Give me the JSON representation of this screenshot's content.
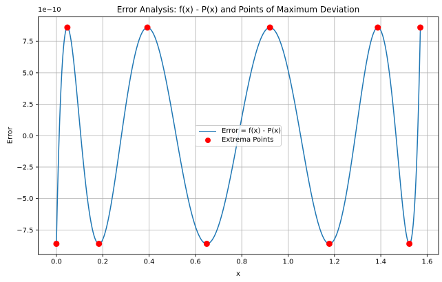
{
  "chart_data": {
    "type": "line",
    "title": "Error Analysis: f(x) - P(x) and Points of Maximum Deviation",
    "xlabel": "x",
    "ylabel": "Error",
    "y_offset_text": "1e−10",
    "grid": true,
    "background": "#ffffff",
    "xlim": [
      -0.0785,
      1.6493
    ],
    "ylim_1e10": [
      -9.45,
      9.45
    ],
    "x_ticks": [
      0.0,
      0.2,
      0.4,
      0.6,
      0.8,
      1.0,
      1.2,
      1.4,
      1.6
    ],
    "x_tick_labels": [
      "0.0",
      "0.2",
      "0.4",
      "0.6",
      "0.8",
      "1.0",
      "1.2",
      "1.4",
      "1.6"
    ],
    "y_ticks_1e10": [
      7.5,
      5.0,
      2.5,
      0.0,
      -2.5,
      -5.0,
      -7.5
    ],
    "y_tick_labels": [
      "7.5",
      "5.0",
      "2.5",
      "0.0",
      "−2.5",
      "−5.0",
      "−7.5"
    ],
    "colors": {
      "line": "#1f77b4",
      "extrema": "#ff0000",
      "grid": "#b0b0b0",
      "spine": "#000000",
      "text": "#000000"
    },
    "legend": {
      "position": "center",
      "entries": [
        {
          "label": "Error = f(x) - P(x)",
          "marker": "line",
          "color": "#1f77b4"
        },
        {
          "label": "Extrema Points",
          "marker": "dot",
          "color": "#ff0000"
        }
      ]
    },
    "series": [
      {
        "name": "Error = f(x) - P(x)",
        "type": "line",
        "color": "#1f77b4",
        "linewidth": 1.5,
        "curve_model": {
          "kind": "chebyshev_equioscillation",
          "order": 9,
          "amplitude_1e10": 8.6,
          "x_domain": [
            0,
            1.5708
          ]
        }
      },
      {
        "name": "Extrema Points",
        "type": "scatter",
        "color": "#ff0000",
        "marker_diameter_px": 9,
        "points_1e10": [
          [
            0.0,
            -8.6
          ],
          [
            0.0474,
            8.6
          ],
          [
            0.1837,
            -8.6
          ],
          [
            0.3927,
            8.6
          ],
          [
            0.649,
            -8.6
          ],
          [
            0.9218,
            8.6
          ],
          [
            1.1781,
            -8.6
          ],
          [
            1.3871,
            8.6
          ],
          [
            1.5234,
            -8.6
          ],
          [
            1.5708,
            8.6
          ]
        ]
      }
    ]
  }
}
